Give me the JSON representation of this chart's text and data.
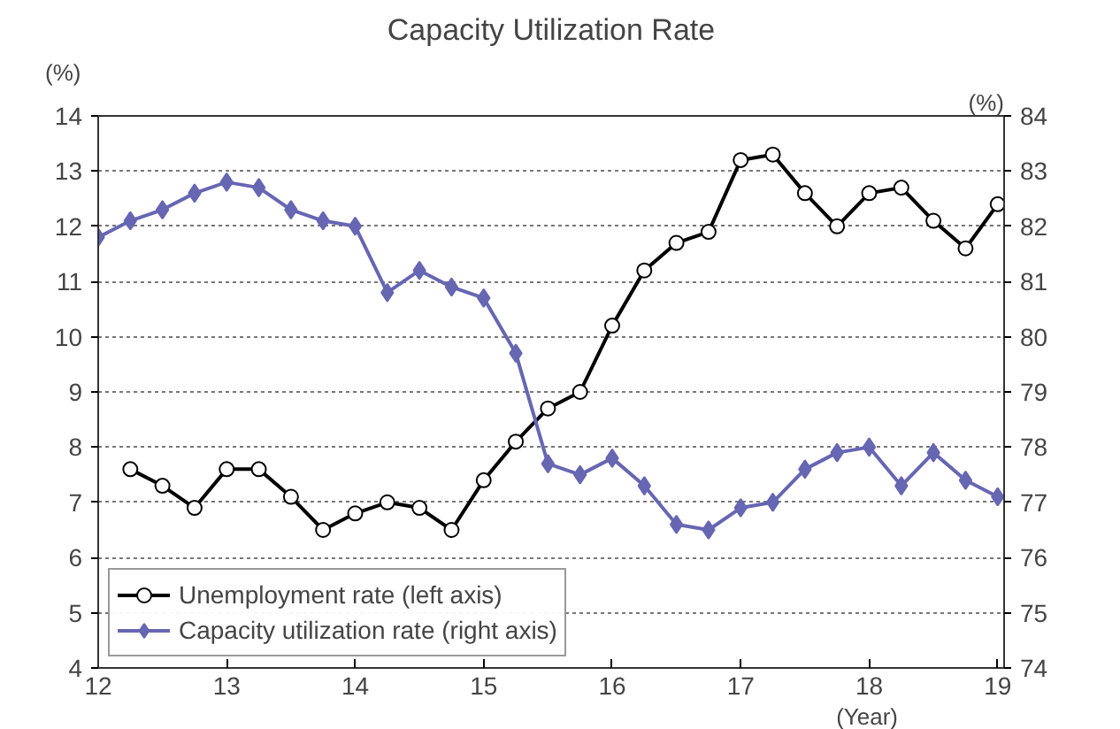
{
  "chart_data": {
    "type": "line",
    "title": "Capacity Utilization Rate",
    "ylabel": "(%)",
    "y2label": "(%)",
    "xlabel": "(Year)",
    "xlim": [
      12,
      19.05
    ],
    "xticks": [
      12,
      13,
      14,
      15,
      16,
      17,
      18,
      19
    ],
    "ylim": [
      4,
      14
    ],
    "yticks": [
      4,
      5,
      6,
      7,
      8,
      9,
      10,
      11,
      12,
      13,
      14
    ],
    "y2lim": [
      74,
      84
    ],
    "y2ticks": [
      74,
      75,
      76,
      77,
      78,
      79,
      80,
      81,
      82,
      83,
      84
    ],
    "grid": "y",
    "legend": "bottom left",
    "series": [
      {
        "name": "Unemployment rate (left axis)",
        "color": "#000000",
        "marker": "circle",
        "x": [
          12.25,
          12.5,
          12.75,
          13,
          13.25,
          13.5,
          13.75,
          14,
          14.25,
          14.5,
          14.75,
          15,
          15.25,
          15.5,
          15.75,
          16,
          16.25,
          16.5,
          16.75,
          17,
          17.25,
          17.5,
          17.75,
          18,
          18.25,
          18.5,
          18.75,
          19
        ],
        "values": [
          7.6,
          7.3,
          6.9,
          7.6,
          7.6,
          7.1,
          6.5,
          6.8,
          7.0,
          6.9,
          6.5,
          7.4,
          8.1,
          8.7,
          9.0,
          10.2,
          11.2,
          11.7,
          11.9,
          13.2,
          13.3,
          12.6,
          12.0,
          12.6,
          12.7,
          12.1,
          11.6,
          12.4
        ]
      },
      {
        "name": "Capacity utilization rate (right axis)",
        "color": "#6666b3",
        "marker": "diamond",
        "axis": "y2",
        "x": [
          12,
          12.25,
          12.5,
          12.75,
          13,
          13.25,
          13.5,
          13.75,
          14,
          14.25,
          14.5,
          14.75,
          15,
          15.25,
          15.5,
          15.75,
          16,
          16.25,
          16.5,
          16.75,
          17,
          17.25,
          17.5,
          17.75,
          18,
          18.25,
          18.5,
          18.75,
          19
        ],
        "values": [
          81.8,
          82.1,
          82.3,
          82.6,
          82.8,
          82.7,
          82.3,
          82.1,
          82.0,
          80.8,
          81.2,
          80.9,
          80.7,
          79.7,
          77.7,
          77.5,
          77.8,
          77.3,
          76.6,
          76.5,
          76.9,
          77.0,
          77.6,
          77.9,
          78.0,
          77.3,
          77.9,
          77.4,
          77.1
        ]
      }
    ]
  }
}
